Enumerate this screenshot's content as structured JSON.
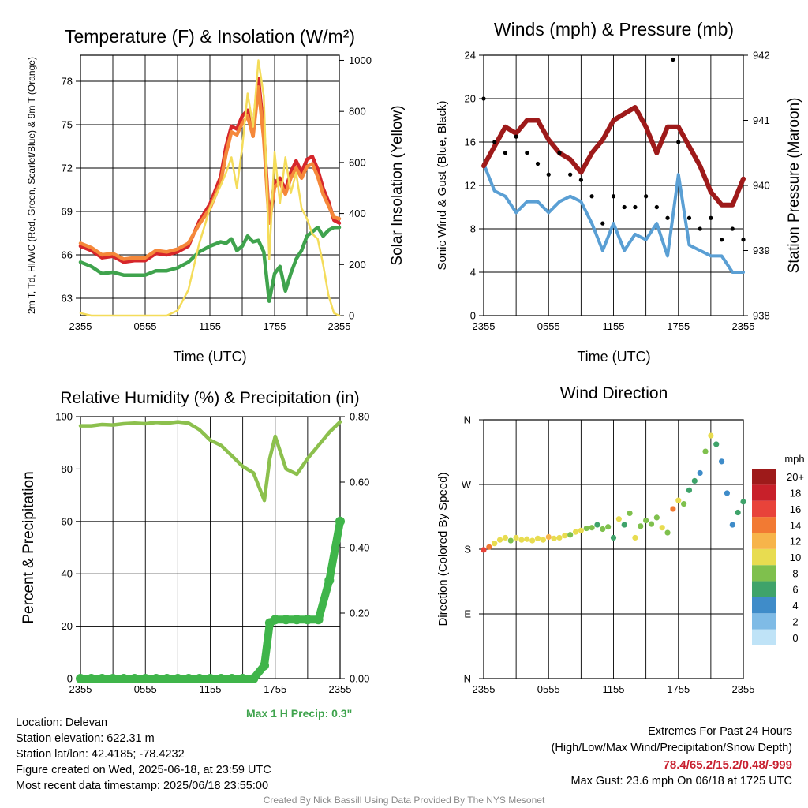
{
  "chart_data": [
    {
      "type": "line",
      "title": "Temperature (F) & Insolation (W/m²)",
      "xlabel": "Time (UTC)",
      "ylabel_left": "2m T, Td, HI/WC (Red, Green, Scarlet/Blue) & 9m T (Orange)",
      "ylabel_right": "Solar Insolation (Yellow)",
      "x_ticks": [
        "2355",
        "0555",
        "1155",
        "1755",
        "2355"
      ],
      "y_ticks_left": [
        63,
        66,
        69,
        72,
        75,
        78
      ],
      "y_ticks_right": [
        0,
        200,
        400,
        600,
        800,
        1000
      ],
      "ylim_left": [
        61.8,
        79.8
      ],
      "ylim_right": [
        0,
        1020
      ],
      "x_hours": [
        0,
        1,
        2,
        3,
        4,
        5,
        6,
        7,
        8,
        9,
        10,
        11,
        12,
        13,
        13.5,
        14,
        14.5,
        15,
        15.5,
        16,
        16.5,
        17,
        17.5,
        18,
        18.5,
        19,
        19.5,
        20,
        20.5,
        21,
        21.5,
        22,
        22.5,
        23,
        23.5,
        24
      ],
      "series": [
        {
          "color": "#d6262b",
          "values": [
            66.6,
            66.3,
            65.8,
            65.9,
            65.5,
            65.6,
            65.6,
            66.1,
            66.0,
            66.2,
            66.6,
            68.3,
            69.5,
            71.4,
            73.5,
            74.9,
            74.7,
            75.6,
            76.0,
            74.5,
            78.2,
            74.5,
            68.4,
            71.0,
            71.3,
            70.5,
            71.7,
            72.5,
            71.7,
            72.6,
            72.8,
            71.9,
            70.6,
            69.7,
            68.4,
            68.2
          ]
        },
        {
          "color": "#f5883a",
          "values": [
            66.8,
            66.5,
            66.0,
            66.1,
            65.7,
            65.8,
            65.8,
            66.3,
            66.2,
            66.4,
            66.8,
            68.1,
            69.2,
            71.0,
            73.0,
            74.5,
            74.3,
            75.1,
            75.6,
            74.2,
            77.6,
            74.0,
            68.2,
            70.7,
            71.0,
            70.2,
            71.3,
            72.0,
            71.3,
            72.1,
            72.3,
            71.4,
            70.2,
            69.4,
            68.6,
            68.5
          ]
        },
        {
          "color": "#3fa34d",
          "values": [
            65.5,
            65.2,
            64.7,
            64.8,
            64.6,
            64.6,
            64.6,
            64.9,
            64.9,
            65.1,
            65.5,
            66.2,
            66.6,
            66.9,
            66.8,
            67.1,
            66.3,
            66.6,
            67.3,
            66.9,
            67.0,
            66.2,
            62.8,
            64.7,
            65.2,
            63.5,
            64.7,
            65.7,
            66.3,
            67.3,
            67.6,
            67.9,
            67.3,
            67.7,
            67.9,
            67.9
          ]
        },
        {
          "color": "#f4dc5a",
          "axis": "right",
          "values": [
            10,
            0,
            0,
            0,
            0,
            0,
            0,
            0,
            0,
            20,
            100,
            280,
            420,
            510,
            560,
            620,
            500,
            660,
            870,
            740,
            1000,
            860,
            220,
            640,
            440,
            620,
            480,
            560,
            420,
            380,
            320,
            300,
            200,
            80,
            10,
            0
          ]
        }
      ]
    },
    {
      "type": "scatter",
      "title": "Winds (mph) & Pressure (mb)",
      "xlabel": "Time (UTC)",
      "ylabel_left": "Sonic Wind & Gust (Blue, Black)",
      "ylabel_right": "Station Pressure (Maroon)",
      "x_ticks": [
        "2355",
        "0555",
        "1155",
        "1755",
        "2355"
      ],
      "y_ticks_left": [
        0,
        4,
        8,
        12,
        16,
        20,
        24
      ],
      "y_ticks_right": [
        938,
        939,
        940,
        941,
        942
      ],
      "ylim_left": [
        0,
        24
      ],
      "ylim_right": [
        938,
        942
      ],
      "x_hours": [
        0,
        1,
        2,
        3,
        4,
        5,
        6,
        7,
        8,
        9,
        10,
        11,
        12,
        13,
        14,
        15,
        16,
        17,
        18,
        19,
        20,
        21,
        22,
        23,
        24
      ],
      "series": [
        {
          "color": "#9e1a1a",
          "axis": "right",
          "values": [
            940.3,
            940.6,
            940.9,
            940.8,
            941.0,
            941.0,
            940.7,
            940.5,
            940.4,
            940.2,
            940.5,
            940.7,
            941.0,
            941.1,
            941.2,
            940.9,
            940.5,
            940.9,
            940.9,
            940.6,
            940.3,
            939.9,
            939.7,
            939.7,
            940.1
          ]
        },
        {
          "color": "#5a9fd4",
          "values": [
            14,
            11.5,
            11,
            9.5,
            10.5,
            10.5,
            9.5,
            10.5,
            11,
            10.5,
            8.5,
            6,
            8.5,
            6,
            7.5,
            7,
            8.5,
            5.5,
            13,
            6.5,
            6,
            5.5,
            5.5,
            4,
            4
          ]
        },
        {
          "color": "#000000",
          "values": [
            20,
            16,
            15,
            16.5,
            15,
            14,
            13,
            15,
            13,
            12.5,
            11,
            8.5,
            11,
            10,
            10,
            11,
            10,
            9,
            16,
            9,
            8,
            9,
            7,
            8,
            7
          ]
        }
      ],
      "max_gust_mph": 23.6
    },
    {
      "type": "line",
      "title": "Relative Humidity (%) & Precipitation (in)",
      "xlabel": "",
      "ylabel_left": "Percent & Precipitation",
      "x_ticks": [
        "2355",
        "0555",
        "1155",
        "1755",
        "2355"
      ],
      "y_ticks_left": [
        0,
        20,
        40,
        60,
        80,
        100
      ],
      "y_ticks_right": [
        "0.00",
        "0.20",
        "0.40",
        "0.60",
        "0.80"
      ],
      "ylim_left": [
        0,
        100
      ],
      "ylim_right": [
        0,
        0.8
      ],
      "x_hours": [
        0,
        1,
        2,
        3,
        4,
        5,
        6,
        7,
        8,
        9,
        10,
        11,
        12,
        13,
        14,
        15,
        16,
        17,
        17.5,
        18,
        19,
        20,
        21,
        22,
        23,
        24
      ],
      "series": [
        {
          "name": "Relative Humidity",
          "color": "#8cc04d",
          "values": [
            96.5,
            96.5,
            97.0,
            96.8,
            97.3,
            97.5,
            97.3,
            97.8,
            97.5,
            98.0,
            97.5,
            95.0,
            91.0,
            89.0,
            85.0,
            81.0,
            78.5,
            68.0,
            84.0,
            92.5,
            80.0,
            78.0,
            84.0,
            89.0,
            94.0,
            98.0
          ]
        },
        {
          "name": "Precipitation",
          "color": "#3fb54a",
          "axis": "right",
          "values": [
            0,
            0,
            0,
            0,
            0,
            0,
            0,
            0,
            0,
            0,
            0,
            0,
            0,
            0,
            0,
            0,
            0,
            0.04,
            0.17,
            0.18,
            0.18,
            0.18,
            0.18,
            0.18,
            0.3,
            0.48
          ]
        }
      ],
      "max_1h_precip_in": 0.3
    },
    {
      "type": "scatter",
      "title": "Wind Direction",
      "ylabel": "Direction (Colored By Speed)",
      "x_ticks": [
        "2355",
        "0555",
        "1155",
        "1755",
        "2355"
      ],
      "y_ticks": [
        "N",
        "E",
        "S",
        "W",
        "N"
      ],
      "ylim_degrees": [
        0,
        360
      ],
      "colorbar": {
        "title": "mph",
        "labels": [
          "0",
          "2",
          "4",
          "6",
          "8",
          "10",
          "12",
          "14",
          "16",
          "18",
          "20+"
        ],
        "colors": [
          "#bfe3f7",
          "#7fbbe6",
          "#3f8cc9",
          "#3fa36a",
          "#7fc04d",
          "#e8dc50",
          "#f7b44a",
          "#f27a33",
          "#e8433a",
          "#c8202a",
          "#9e1a1a"
        ]
      },
      "x_hours": [
        0,
        0.5,
        1,
        1.5,
        2,
        2.5,
        3,
        3.5,
        4,
        4.5,
        5,
        5.5,
        6,
        6.5,
        7,
        7.5,
        8,
        8.5,
        9,
        9.5,
        10,
        10.5,
        11,
        11.5,
        12,
        12.5,
        13,
        13.5,
        14,
        14.5,
        15,
        15.5,
        16,
        16.5,
        17,
        17.5,
        18,
        18.5,
        19,
        19.5,
        20,
        20.5,
        21,
        21.5,
        22,
        22.5,
        23,
        23.5,
        24
      ],
      "dir_deg": [
        179,
        183,
        188,
        193,
        196,
        192,
        196,
        193,
        194,
        192,
        195,
        193,
        197,
        195,
        196,
        199,
        200,
        204,
        206,
        209,
        210,
        214,
        208,
        211,
        196,
        222,
        214,
        230,
        196,
        212,
        220,
        215,
        224,
        210,
        203,
        236,
        248,
        243,
        262,
        275,
        286,
        316,
        338,
        326,
        302,
        258,
        214,
        231,
        246
      ],
      "speed_mph": [
        15,
        13,
        10,
        9,
        9,
        8,
        9,
        10,
        9,
        10,
        9,
        10,
        11,
        10,
        9,
        9,
        8,
        9,
        10,
        7,
        8,
        6,
        7,
        8,
        5,
        9,
        6,
        8,
        9,
        7,
        8,
        8,
        7,
        10,
        8,
        13,
        9,
        7,
        6,
        5,
        4,
        7,
        9,
        5,
        4,
        3,
        4,
        5,
        5
      ]
    }
  ],
  "info": {
    "location": "Location: Delevan",
    "elevation": "Station elevation: 622.31 m",
    "latlon": "Station lat/lon: 42.4185; -78.4232",
    "created": "Figure created on Wed, 2025-06-18, at 23:59 UTC",
    "recent": "Most recent data timestamp: 2025/06/18 23:55:00"
  },
  "extremes": {
    "title": "Extremes For Past 24 Hours",
    "subtitle": "(High/Low/Max Wind/Precipitation/Snow Depth)",
    "values": "78.4/65.2/15.2/0.48/-999",
    "max_gust": "Max Gust: 23.6 mph On 06/18 at 1725 UTC"
  },
  "precip_note": "Max 1 H Precip: 0.3\"",
  "credit": "Created By Nick Bassill Using Data Provided By The NYS Mesonet"
}
